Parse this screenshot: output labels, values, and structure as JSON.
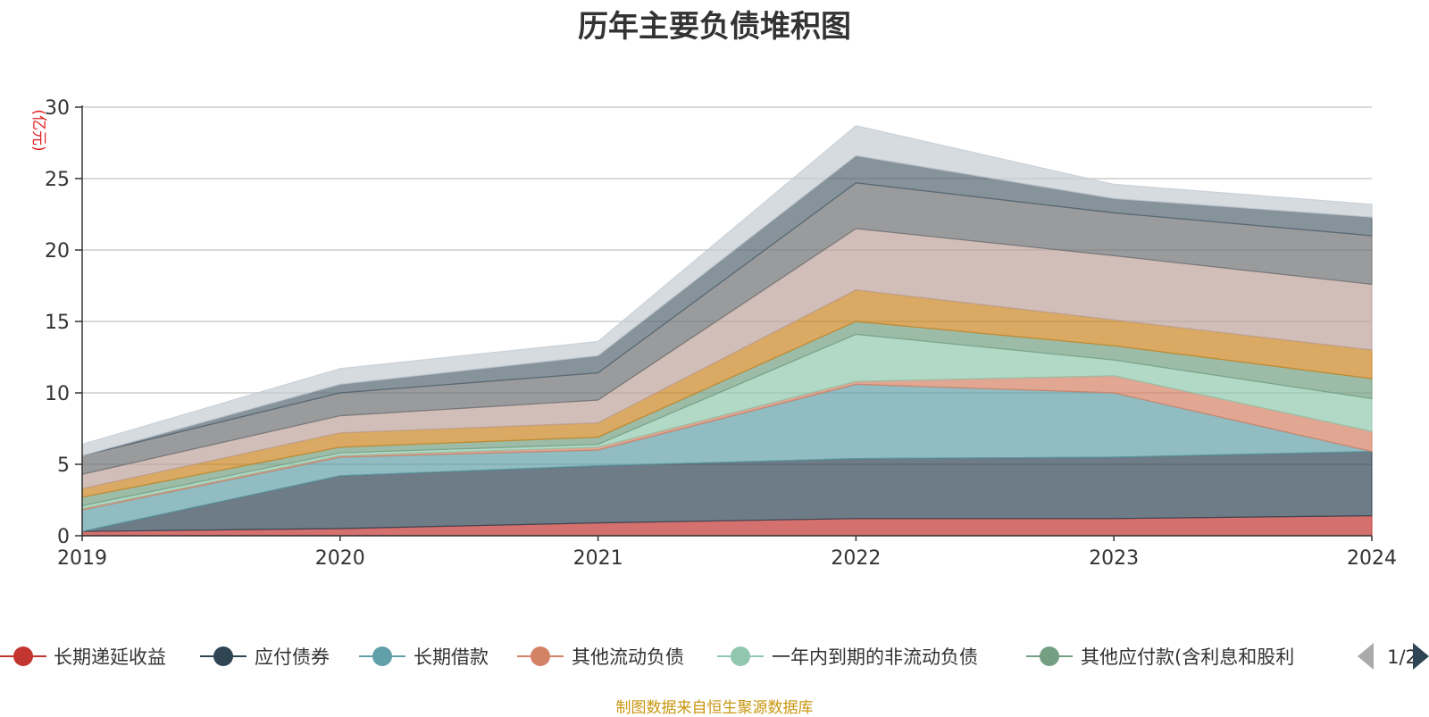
{
  "chart_data": {
    "type": "area",
    "stacked": true,
    "title": "历年主要负债堆积图",
    "ylabel": "(亿元)",
    "x": [
      "2019",
      "2020",
      "2021",
      "2022",
      "2023",
      "2024"
    ],
    "ylim": [
      0,
      30
    ],
    "yticks": [
      0,
      5,
      10,
      15,
      20,
      25,
      30
    ],
    "grid": true,
    "legend_position": "bottom",
    "legend_page": "1/2",
    "series": [
      {
        "name": "长期递延收益",
        "color": "#c23531",
        "values": [
          0.3,
          0.5,
          0.9,
          1.2,
          1.2,
          1.4
        ]
      },
      {
        "name": "应付债券",
        "color": "#2f4554",
        "values": [
          0.0,
          3.7,
          4.0,
          4.2,
          4.3,
          4.5
        ]
      },
      {
        "name": "长期借款",
        "color": "#61a0a8",
        "values": [
          1.5,
          1.3,
          1.1,
          5.2,
          4.5,
          0.0
        ]
      },
      {
        "name": "其他流动负债",
        "color": "#d48265",
        "values": [
          0.1,
          0.1,
          0.2,
          0.2,
          1.2,
          1.4
        ]
      },
      {
        "name": "一年内到期的非流动负债",
        "color": "#91c7ae",
        "values": [
          0.2,
          0.2,
          0.2,
          3.3,
          1.1,
          2.3
        ]
      },
      {
        "name": "其他应付款(含利息和股利",
        "color": "#749f83",
        "values": [
          0.6,
          0.4,
          0.5,
          0.9,
          1.0,
          1.4
        ]
      },
      {
        "name": "",
        "color": "#ca8622",
        "values": [
          0.6,
          1.0,
          1.0,
          2.2,
          1.8,
          2.0
        ]
      },
      {
        "name": "",
        "color": "#bda29a",
        "values": [
          1.0,
          1.2,
          1.6,
          4.3,
          4.5,
          4.6
        ]
      },
      {
        "name": "",
        "color": "#6e7074",
        "values": [
          1.3,
          1.6,
          1.9,
          3.2,
          3.0,
          3.4
        ]
      },
      {
        "name": "",
        "color": "#546570",
        "values": [
          0.0,
          0.6,
          1.2,
          1.9,
          1.0,
          1.3
        ]
      },
      {
        "name": "",
        "color": "#c4ccd3",
        "values": [
          0.8,
          1.1,
          1.0,
          2.1,
          1.0,
          0.9
        ]
      }
    ]
  },
  "source_note": "制图数据来自恒生聚源数据库"
}
